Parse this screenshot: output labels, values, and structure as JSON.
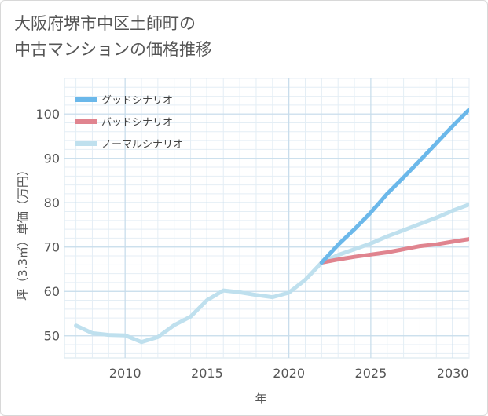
{
  "chart_data": {
    "type": "line",
    "title": "大阪府堺市中区土師町の\n中古マンションの価格推移",
    "xlabel": "年",
    "ylabel": "坪（3.3㎡）単価（万円）",
    "xlim": [
      2006.3,
      2031
    ],
    "ylim": [
      45,
      108
    ],
    "x_ticks": [
      2010,
      2015,
      2020,
      2025,
      2030
    ],
    "y_ticks": [
      50,
      60,
      70,
      80,
      90,
      100
    ],
    "grid": true,
    "legend_position": "top-left",
    "series": [
      {
        "name": "グッドシナリオ",
        "color": "#6bb8ea",
        "x": [
          2022,
          2023,
          2024,
          2025,
          2026,
          2027,
          2028,
          2029,
          2030,
          2031
        ],
        "y": [
          66.5,
          70.5,
          74,
          77.8,
          82,
          85.7,
          89.5,
          93.4,
          97.3,
          101
        ]
      },
      {
        "name": "バッドシナリオ",
        "color": "#e0848f",
        "x": [
          2022,
          2023,
          2024,
          2025,
          2026,
          2027,
          2028,
          2029,
          2030,
          2031
        ],
        "y": [
          66.5,
          67.2,
          67.8,
          68.3,
          68.8,
          69.5,
          70.2,
          70.6,
          71.2,
          71.8
        ]
      },
      {
        "name": "ノーマルシナリオ",
        "color": "#bfe0ee",
        "x": [
          2007,
          2008,
          2009,
          2010,
          2011,
          2012,
          2013,
          2014,
          2015,
          2016,
          2017,
          2018,
          2019,
          2020,
          2021,
          2022,
          2023,
          2024,
          2025,
          2026,
          2027,
          2028,
          2029,
          2030,
          2031
        ],
        "y": [
          52.3,
          50.6,
          50.2,
          50.1,
          48.6,
          49.7,
          52.4,
          54.3,
          58,
          60.2,
          59.8,
          59.2,
          58.7,
          59.7,
          62.6,
          66.5,
          68.2,
          69.5,
          70.8,
          72.4,
          73.8,
          75.2,
          76.6,
          78.2,
          79.6
        ]
      }
    ]
  }
}
